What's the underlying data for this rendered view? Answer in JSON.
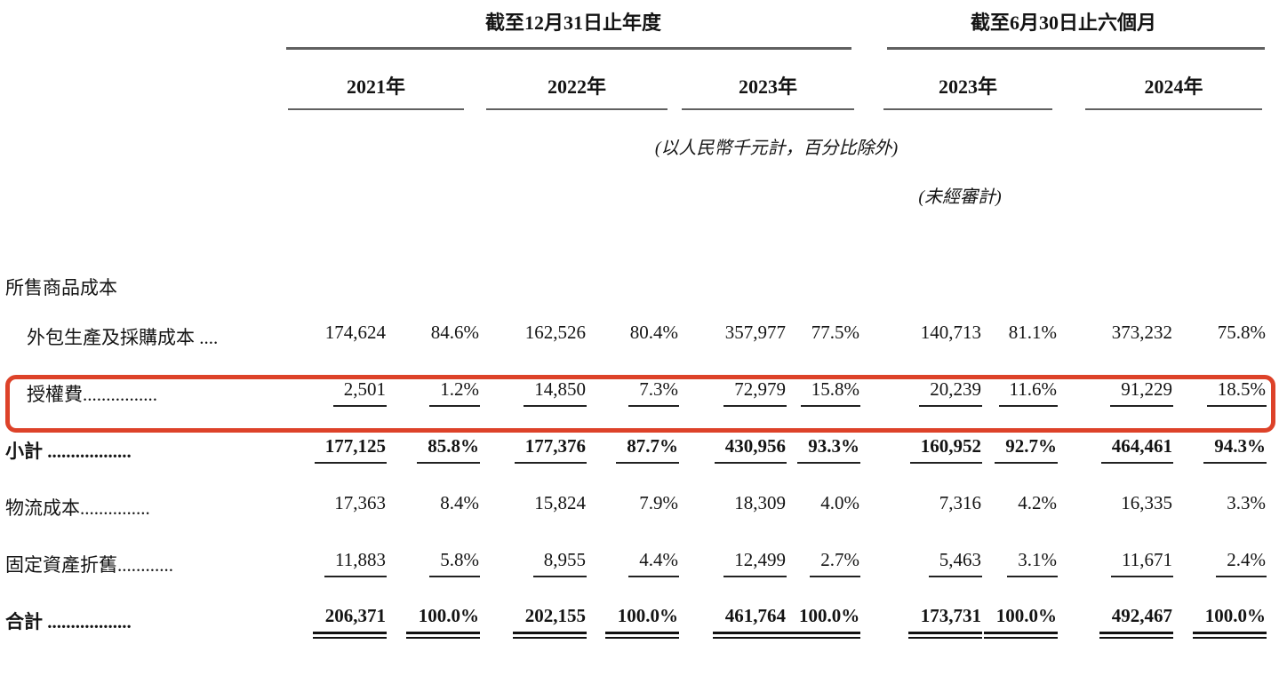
{
  "page": {
    "background": "#ffffff",
    "text_color": "#141414",
    "highlight_color": "#dd4229"
  },
  "header": {
    "group1": {
      "title": "截至12月31日止年度",
      "years": [
        "2021年",
        "2022年",
        "2023年"
      ]
    },
    "group2": {
      "title": "截至6月30日止六個月",
      "years": [
        "2023年",
        "2024年"
      ]
    },
    "unit_note": "(以人民幣千元計，百分比除外)",
    "unaudited_note": "(未經審計)"
  },
  "table": {
    "columns": [
      "2021年金額",
      "2021年%",
      "2022年金額",
      "2022年%",
      "2023年金額",
      "2023年%",
      "2023年六個月金額",
      "2023年六個月%",
      "2024年六個月金額",
      "2024年六個月%"
    ],
    "rows": [
      {
        "id": "cost-of-goods-sold-section",
        "label": "所售商品成本",
        "indent": false,
        "bold": false,
        "underline": "none",
        "highlight": false,
        "values": []
      },
      {
        "id": "outsourced-production-and-procurement-costs",
        "label": "外包生產及採購成本 ....",
        "indent": true,
        "bold": false,
        "underline": "none",
        "highlight": false,
        "values": [
          "174,624",
          "84.6%",
          "162,526",
          "80.4%",
          "357,977",
          "77.5%",
          "140,713",
          "81.1%",
          "373,232",
          "75.8%"
        ]
      },
      {
        "id": "licensing-fees",
        "label": "授權費................",
        "indent": true,
        "bold": false,
        "underline": "single",
        "highlight": true,
        "values": [
          "2,501",
          "1.2%",
          "14,850",
          "7.3%",
          "72,979",
          "15.8%",
          "20,239",
          "11.6%",
          "91,229",
          "18.5%"
        ]
      },
      {
        "id": "subtotal",
        "label": "小計 ..................",
        "indent": false,
        "bold": true,
        "underline": "single",
        "highlight": false,
        "values": [
          "177,125",
          "85.8%",
          "177,376",
          "87.7%",
          "430,956",
          "93.3%",
          "160,952",
          "92.7%",
          "464,461",
          "94.3%"
        ]
      },
      {
        "id": "logistics-costs",
        "label": "物流成本...............",
        "indent": false,
        "bold": false,
        "underline": "none",
        "highlight": false,
        "values": [
          "17,363",
          "8.4%",
          "15,824",
          "7.9%",
          "18,309",
          "4.0%",
          "7,316",
          "4.2%",
          "16,335",
          "3.3%"
        ]
      },
      {
        "id": "depreciation-of-fixed-assets",
        "label": "固定資產折舊............",
        "indent": false,
        "bold": false,
        "underline": "single",
        "highlight": false,
        "values": [
          "11,883",
          "5.8%",
          "8,955",
          "4.4%",
          "12,499",
          "2.7%",
          "5,463",
          "3.1%",
          "11,671",
          "2.4%"
        ]
      },
      {
        "id": "total",
        "label": "合計 ..................",
        "indent": false,
        "bold": true,
        "underline": "double",
        "highlight": false,
        "values": [
          "206,371",
          "100.0%",
          "202,155",
          "100.0%",
          "461,764",
          "100.0%",
          "173,731",
          "100.0%",
          "492,467",
          "100.0%"
        ]
      }
    ]
  }
}
